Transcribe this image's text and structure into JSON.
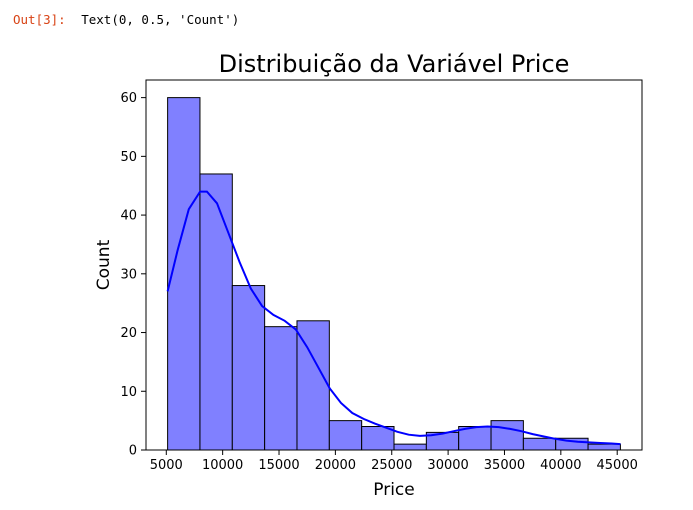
{
  "cell": {
    "prompt": "Out[3]:",
    "text": "Text(0, 0.5, 'Count')"
  },
  "colors": {
    "bar_fill": "#8080ff",
    "bar_edge": "#000000",
    "kde_line": "#0000ff"
  },
  "chart_data": {
    "type": "bar",
    "title": "Distribuição da Variável Price",
    "xlabel": "Price",
    "ylabel": "Count",
    "xlim": [
      3200,
      47200
    ],
    "ylim": [
      0,
      63
    ],
    "xticks": [
      5000,
      10000,
      15000,
      20000,
      25000,
      30000,
      35000,
      40000,
      45000
    ],
    "yticks": [
      0,
      10,
      20,
      30,
      40,
      50,
      60
    ],
    "bins": [
      {
        "x0": 5118,
        "x1": 7987,
        "count": 60
      },
      {
        "x0": 7987,
        "x1": 10856,
        "count": 47
      },
      {
        "x0": 10856,
        "x1": 13725,
        "count": 28
      },
      {
        "x0": 13725,
        "x1": 16594,
        "count": 21
      },
      {
        "x0": 16594,
        "x1": 19463,
        "count": 22
      },
      {
        "x0": 19463,
        "x1": 22332,
        "count": 5
      },
      {
        "x0": 22332,
        "x1": 25201,
        "count": 4
      },
      {
        "x0": 25201,
        "x1": 28070,
        "count": 1
      },
      {
        "x0": 28070,
        "x1": 30939,
        "count": 3
      },
      {
        "x0": 30939,
        "x1": 33808,
        "count": 4
      },
      {
        "x0": 33808,
        "x1": 36677,
        "count": 5
      },
      {
        "x0": 36677,
        "x1": 39546,
        "count": 2
      },
      {
        "x0": 39546,
        "x1": 42415,
        "count": 2
      },
      {
        "x0": 42415,
        "x1": 45284,
        "count": 1
      }
    ],
    "kde": {
      "x": [
        5118,
        6000,
        7000,
        8000,
        8600,
        9500,
        10500,
        11500,
        12500,
        13500,
        14500,
        15500,
        16500,
        17500,
        18500,
        19500,
        20500,
        21500,
        22500,
        23500,
        24500,
        25500,
        26500,
        27500,
        28500,
        29500,
        30500,
        31500,
        32500,
        33500,
        34500,
        35500,
        36500,
        37500,
        38500,
        39500,
        40500,
        41500,
        42500,
        43500,
        44500,
        45284
      ],
      "y": [
        27,
        34,
        41,
        44,
        44,
        42,
        37,
        32,
        27.5,
        24.5,
        23,
        22,
        20.5,
        17.5,
        14,
        10.5,
        8,
        6.3,
        5.3,
        4.5,
        3.8,
        3.1,
        2.6,
        2.4,
        2.5,
        2.8,
        3.2,
        3.6,
        3.9,
        4.0,
        3.9,
        3.6,
        3.2,
        2.7,
        2.3,
        1.9,
        1.6,
        1.4,
        1.3,
        1.2,
        1.1,
        1.0
      ]
    },
    "grid": false,
    "legend": "none"
  }
}
